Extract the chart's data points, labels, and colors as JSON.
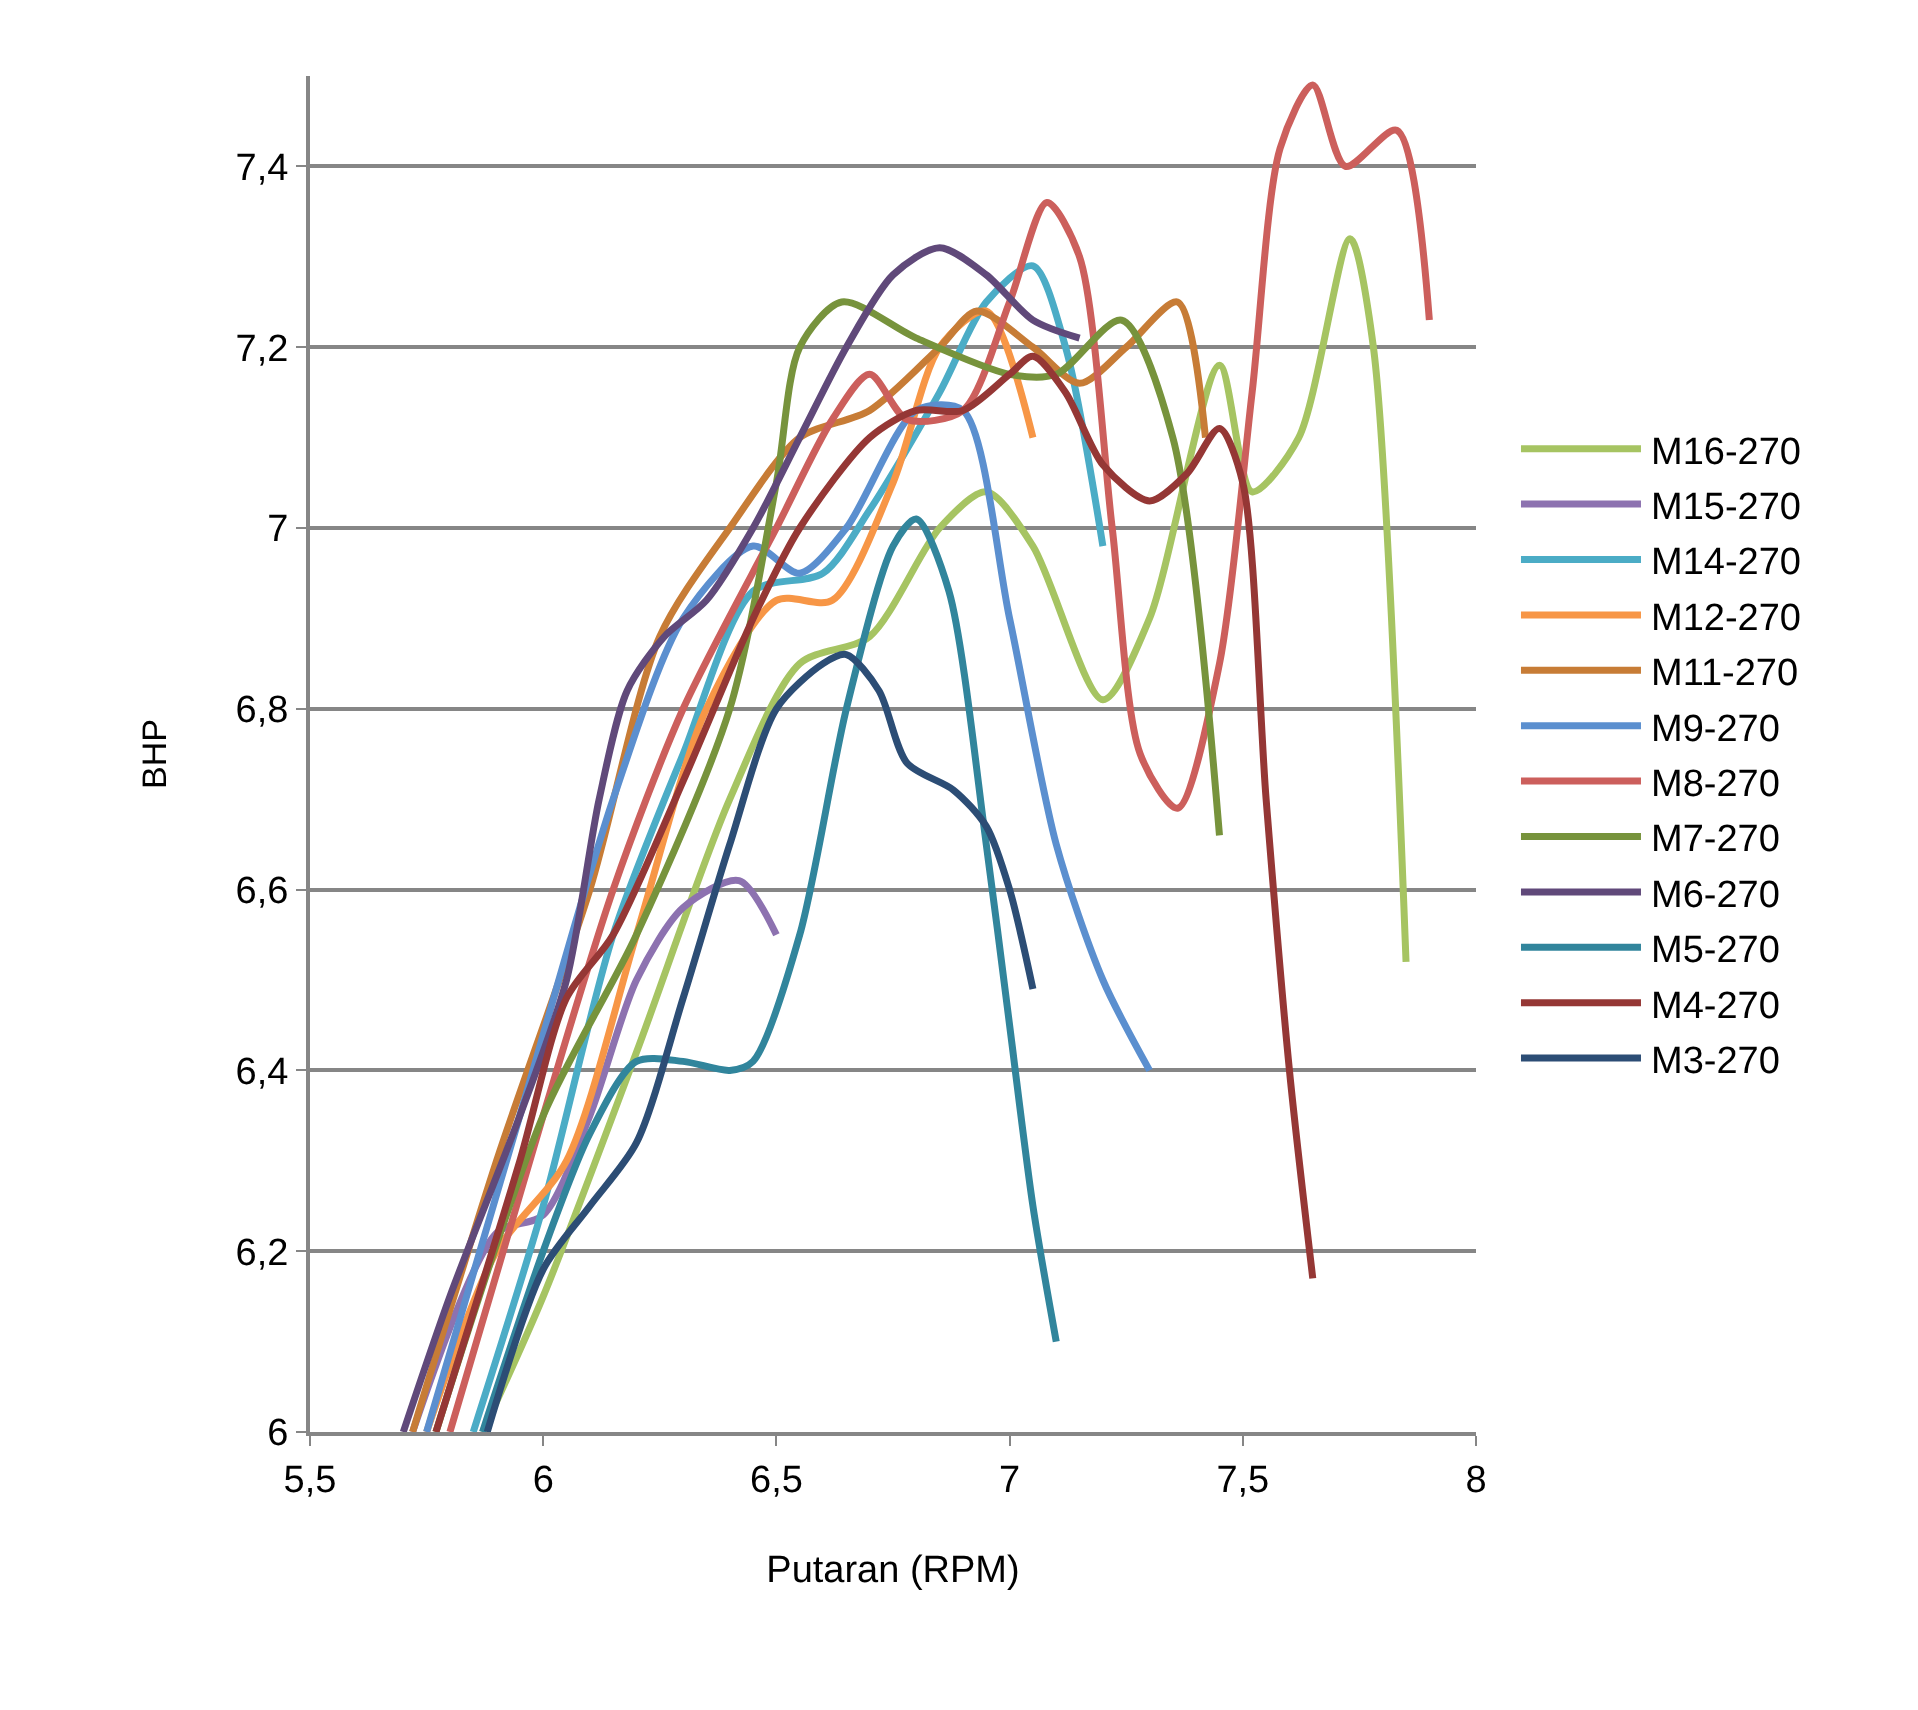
{
  "chart_data": {
    "type": "line",
    "xlabel": "Putaran (RPM)",
    "ylabel": "BHP",
    "xlim": [
      5.5,
      8
    ],
    "ylim": [
      6,
      7.5
    ],
    "xticks": [
      {
        "value": 5.5,
        "label": "5,5"
      },
      6,
      {
        "value": 6.5,
        "label": "6,5"
      },
      7,
      {
        "value": 7.5,
        "label": "7,5"
      },
      8
    ],
    "yticks": [
      6,
      {
        "value": 6.2,
        "label": "6,2"
      },
      {
        "value": 6.4,
        "label": "6,4"
      },
      {
        "value": 6.6,
        "label": "6,6"
      },
      {
        "value": 6.8,
        "label": "6,8"
      },
      7,
      {
        "value": 7.2,
        "label": "7,2"
      },
      {
        "value": 7.4,
        "label": "7,4"
      }
    ],
    "grid": "y",
    "legend": "right",
    "marker": "none",
    "line_style": "solid",
    "series": [
      {
        "name": "M16-270",
        "color": "#a6c462",
        "x": [
          5.87,
          6.0,
          6.2,
          6.4,
          6.55,
          6.7,
          6.85,
          6.95,
          7.05,
          7.2,
          7.3,
          7.45,
          7.52,
          7.62,
          7.73,
          7.78,
          7.85
        ],
        "values": [
          6,
          6.15,
          6.42,
          6.7,
          6.85,
          6.88,
          7.0,
          7.04,
          6.98,
          6.81,
          6.9,
          7.18,
          7.04,
          7.1,
          7.32,
          7.2,
          6.52
        ]
      },
      {
        "name": "M15-270",
        "color": "#8d72b0",
        "x": [
          5.72,
          5.9,
          6.0,
          6.1,
          6.2,
          6.3,
          6.42,
          6.5
        ],
        "values": [
          6,
          6.22,
          6.24,
          6.35,
          6.5,
          6.58,
          6.61,
          6.55
        ]
      },
      {
        "name": "M14-270",
        "color": "#4bacc6",
        "x": [
          5.85,
          6.0,
          6.15,
          6.3,
          6.45,
          6.6,
          6.7,
          6.85,
          6.95,
          7.05,
          7.12,
          7.2
        ],
        "values": [
          6,
          6.25,
          6.55,
          6.75,
          6.93,
          6.95,
          7.02,
          7.15,
          7.25,
          7.29,
          7.2,
          6.98
        ]
      },
      {
        "name": "M12-270",
        "color": "#f79646",
        "x": [
          5.75,
          5.9,
          6.05,
          6.2,
          6.35,
          6.5,
          6.62,
          6.75,
          6.85,
          6.95,
          7.05
        ],
        "values": [
          6,
          6.2,
          6.3,
          6.55,
          6.8,
          6.92,
          6.92,
          7.05,
          7.2,
          7.24,
          7.1
        ]
      },
      {
        "name": "M11-270",
        "color": "#c77c36",
        "x": [
          5.72,
          5.9,
          6.1,
          6.25,
          6.4,
          6.55,
          6.7,
          6.85,
          6.93,
          7.05,
          7.15,
          7.25,
          7.36,
          7.42
        ],
        "values": [
          6,
          6.3,
          6.6,
          6.88,
          7.0,
          7.1,
          7.13,
          7.2,
          7.24,
          7.2,
          7.16,
          7.2,
          7.25,
          7.1
        ]
      },
      {
        "name": "M9-270",
        "color": "#5b8fcf",
        "x": [
          5.75,
          5.95,
          6.15,
          6.3,
          6.45,
          6.55,
          6.65,
          6.8,
          6.9,
          7.0,
          7.1,
          7.2,
          7.3
        ],
        "values": [
          6,
          6.35,
          6.7,
          6.9,
          6.98,
          6.95,
          7.0,
          7.13,
          7.13,
          6.9,
          6.65,
          6.5,
          6.4
        ]
      },
      {
        "name": "M8-270",
        "color": "#cc5f5c",
        "x": [
          5.8,
          6.0,
          6.15,
          6.3,
          6.5,
          6.62,
          6.7,
          6.78,
          6.9,
          7.0,
          7.08,
          7.15,
          7.22,
          7.28,
          7.36,
          7.45,
          7.52,
          7.58,
          7.65,
          7.72,
          7.83,
          7.9
        ],
        "values": [
          6,
          6.35,
          6.6,
          6.8,
          7.0,
          7.12,
          7.17,
          7.12,
          7.13,
          7.25,
          7.36,
          7.3,
          7.0,
          6.75,
          6.69,
          6.85,
          7.15,
          7.42,
          7.49,
          7.4,
          7.44,
          7.23
        ]
      },
      {
        "name": "M7-270",
        "color": "#77933c",
        "x": [
          5.77,
          6.0,
          6.2,
          6.4,
          6.5,
          6.55,
          6.64,
          6.8,
          7.0,
          7.1,
          7.24,
          7.35,
          7.45
        ],
        "values": [
          6,
          6.35,
          6.55,
          6.8,
          7.05,
          7.2,
          7.25,
          7.21,
          7.17,
          7.17,
          7.23,
          7.1,
          6.66
        ]
      },
      {
        "name": "M6-270",
        "color": "#60497a",
        "x": [
          5.7,
          5.8,
          5.95,
          6.05,
          6.12,
          6.18,
          6.26,
          6.35,
          6.45,
          6.55,
          6.65,
          6.75,
          6.85,
          6.95,
          7.05,
          7.15
        ],
        "values": [
          6,
          6.15,
          6.35,
          6.5,
          6.7,
          6.82,
          6.88,
          6.92,
          7.0,
          7.1,
          7.2,
          7.28,
          7.31,
          7.28,
          7.23,
          7.21
        ]
      },
      {
        "name": "M5-270",
        "color": "#31859c",
        "x": [
          5.87,
          6.0,
          6.1,
          6.2,
          6.3,
          6.4,
          6.45,
          6.55,
          6.65,
          6.75,
          6.8,
          6.87,
          6.95,
          7.0,
          7.05,
          7.1
        ],
        "values": [
          6,
          6.2,
          6.33,
          6.41,
          6.41,
          6.4,
          6.41,
          6.55,
          6.8,
          6.98,
          7.01,
          6.93,
          6.65,
          6.45,
          6.25,
          6.1
        ]
      },
      {
        "name": "M4-270",
        "color": "#953735",
        "x": [
          5.77,
          5.95,
          6.05,
          6.15,
          6.3,
          6.45,
          6.55,
          6.7,
          6.8,
          6.9,
          7.0,
          7.05,
          7.12,
          7.2,
          7.3,
          7.38,
          7.45,
          7.5,
          7.55,
          7.6,
          7.65
        ],
        "values": [
          6,
          6.3,
          6.48,
          6.55,
          6.72,
          6.9,
          7.0,
          7.1,
          7.13,
          7.13,
          7.17,
          7.19,
          7.15,
          7.07,
          7.03,
          7.06,
          7.11,
          7.05,
          6.7,
          6.4,
          6.17
        ]
      },
      {
        "name": "M3-270",
        "color": "#2c4d75",
        "x": [
          5.88,
          6.0,
          6.1,
          6.2,
          6.3,
          6.4,
          6.5,
          6.6,
          6.65,
          6.72,
          6.78,
          6.88,
          6.95,
          7.0,
          7.05
        ],
        "values": [
          6,
          6.18,
          6.25,
          6.32,
          6.48,
          6.65,
          6.8,
          6.85,
          6.86,
          6.82,
          6.74,
          6.71,
          6.67,
          6.6,
          6.49
        ]
      }
    ]
  }
}
